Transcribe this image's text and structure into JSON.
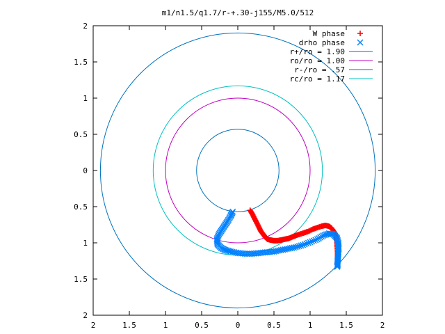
{
  "chart_data": {
    "type": "scatter",
    "title": "m1/n1.5/q1.7/r-+.30-j155/M5.0/512",
    "xlabel": "",
    "ylabel": "",
    "xlim": [
      -2,
      2
    ],
    "ylim": [
      -2,
      2
    ],
    "grid": false,
    "legend_position": "top-right",
    "x_tick_labels": [
      "2",
      "1.5",
      "1",
      "0.5",
      "0",
      "0.5",
      "1",
      "1.5",
      "2"
    ],
    "y_tick_labels": [
      "2",
      "1.5",
      "1",
      "0.5",
      "0",
      "0.5",
      "1",
      "1.5",
      "2"
    ],
    "x_tick_values": [
      -2,
      -1.5,
      -1,
      -0.5,
      0,
      0.5,
      1,
      1.5,
      2
    ],
    "y_tick_values": [
      2,
      1.5,
      1,
      0.5,
      0,
      -0.5,
      -1,
      -1.5,
      -2
    ],
    "series": [
      {
        "name": "W phase",
        "kind": "points",
        "marker": "plus",
        "color": "#ff0000",
        "x": [
          0.17,
          0.2,
          0.23,
          0.26,
          0.29,
          0.32,
          0.35,
          0.38,
          0.41,
          0.45,
          0.5,
          0.55,
          0.6,
          0.65,
          0.7,
          0.75,
          0.8,
          0.86,
          0.92,
          0.98,
          1.04,
          1.1,
          1.16,
          1.21,
          1.26,
          1.3,
          1.34,
          1.36,
          1.37,
          1.375,
          1.38,
          1.38,
          1.38,
          1.375
        ],
        "y": [
          -0.55,
          -0.6,
          -0.66,
          -0.72,
          -0.78,
          -0.84,
          -0.88,
          -0.92,
          -0.95,
          -0.96,
          -0.97,
          -0.97,
          -0.96,
          -0.95,
          -0.94,
          -0.92,
          -0.9,
          -0.88,
          -0.86,
          -0.84,
          -0.81,
          -0.79,
          -0.77,
          -0.76,
          -0.77,
          -0.8,
          -0.86,
          -0.92,
          -0.98,
          -1.05,
          -1.12,
          -1.18,
          -1.24,
          -1.3
        ]
      },
      {
        "name": "drho phase",
        "kind": "points",
        "marker": "cross",
        "color": "#0080ff",
        "x": [
          -0.07,
          -0.1,
          -0.14,
          -0.18,
          -0.22,
          -0.26,
          -0.29,
          -0.28,
          -0.23,
          -0.17,
          -0.1,
          0.0,
          0.1,
          0.2,
          0.3,
          0.4,
          0.5,
          0.6,
          0.7,
          0.8,
          0.9,
          1.0,
          1.1,
          1.18,
          1.26,
          1.32,
          1.37,
          1.39,
          1.395,
          1.39,
          1.385,
          1.38,
          1.38,
          1.375
        ],
        "y": [
          -0.57,
          -0.63,
          -0.7,
          -0.76,
          -0.82,
          -0.88,
          -0.95,
          -1.02,
          -1.07,
          -1.1,
          -1.12,
          -1.14,
          -1.15,
          -1.15,
          -1.14,
          -1.13,
          -1.12,
          -1.1,
          -1.08,
          -1.06,
          -1.03,
          -0.99,
          -0.95,
          -0.9,
          -0.87,
          -0.88,
          -0.93,
          -1.0,
          -1.07,
          -1.14,
          -1.2,
          -1.25,
          -1.3,
          -1.33
        ]
      },
      {
        "name": "r+/ro = 1.90",
        "kind": "circle",
        "radius": 1.9,
        "color": "#0072bd"
      },
      {
        "name": "ro/ro = 1.00",
        "kind": "circle",
        "radius": 1.0,
        "color": "#c000c0"
      },
      {
        "name": "r-/ro = .57",
        "kind": "circle",
        "radius": 0.57,
        "color": "#0072bd"
      },
      {
        "name": "rc/ro = 1.17",
        "kind": "circle",
        "radius": 1.17,
        "color": "#00c0c0"
      }
    ]
  }
}
